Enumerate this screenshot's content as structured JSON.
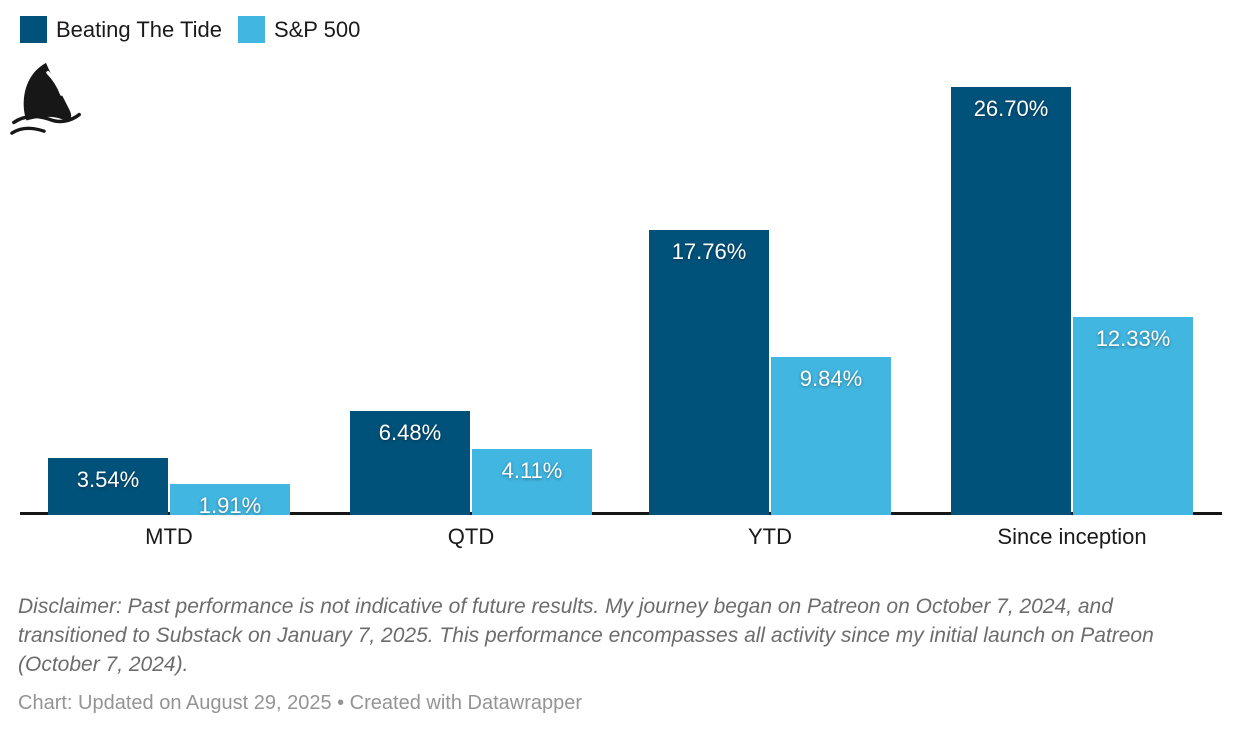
{
  "legend": {
    "items": [
      {
        "label": "Beating The Tide",
        "color": "#00527b"
      },
      {
        "label": "S&P 500",
        "color": "#41b6e1"
      }
    ]
  },
  "logo": {
    "icon": "shark-fin-icon"
  },
  "chart_data": {
    "type": "bar",
    "categories": [
      "MTD",
      "QTD",
      "YTD",
      "Since inception"
    ],
    "series": [
      {
        "name": "Beating The Tide",
        "color": "#00527b",
        "values": [
          3.54,
          6.48,
          17.76,
          26.7
        ],
        "labels": [
          "3.54%",
          "6.48%",
          "17.76%",
          "26.70%"
        ]
      },
      {
        "name": "S&P 500",
        "color": "#41b6e1",
        "values": [
          1.91,
          4.11,
          9.84,
          12.33
        ],
        "labels": [
          "1.91%",
          "4.11%",
          "9.84%",
          "12.33%"
        ]
      }
    ],
    "value_format": "percent",
    "xlabel": "",
    "ylabel": "",
    "ylim": [
      0,
      26.7
    ],
    "grid": false,
    "axis_line_color": "#161616",
    "value_label_color": "#ffffff",
    "legend_position": "top-left"
  },
  "notes": {
    "disclaimer": "Disclaimer: Past performance is not indicative of future results. My journey began on Patreon on October 7, 2024, and transitioned to Substack on January 7, 2025. This performance encompasses all activity since my initial launch on Patreon (October 7, 2024).",
    "footer": "Chart: Updated on August 29, 2025 • Created with Datawrapper"
  }
}
